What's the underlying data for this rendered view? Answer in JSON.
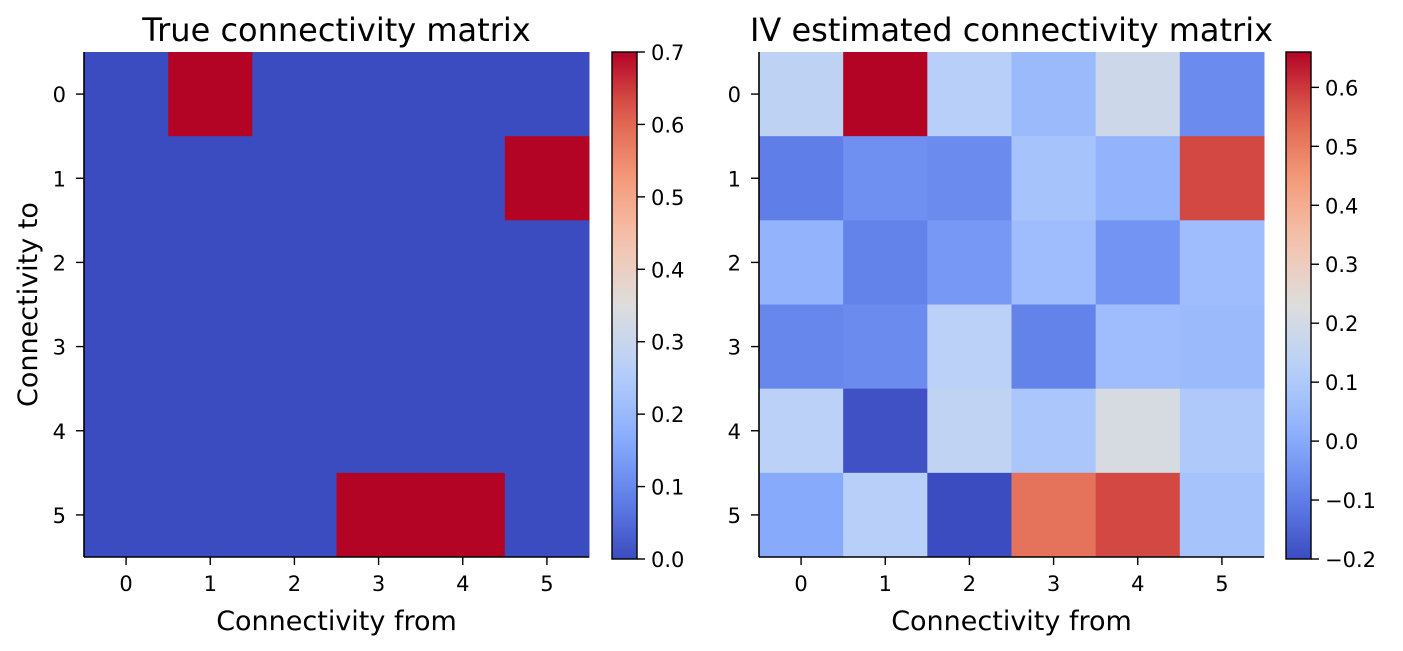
{
  "chart_data": [
    {
      "type": "heatmap",
      "title": "True connectivity matrix",
      "xlabel": "Connectivity from",
      "ylabel": "Connectivity to",
      "x_categories": [
        "0",
        "1",
        "2",
        "3",
        "4",
        "5"
      ],
      "y_categories": [
        "0",
        "1",
        "2",
        "3",
        "4",
        "5"
      ],
      "values": [
        [
          0.0,
          0.7,
          0.0,
          0.0,
          0.0,
          0.0
        ],
        [
          0.0,
          0.0,
          0.0,
          0.0,
          0.0,
          0.7
        ],
        [
          0.0,
          0.0,
          0.0,
          0.0,
          0.0,
          0.0
        ],
        [
          0.0,
          0.0,
          0.0,
          0.0,
          0.0,
          0.0
        ],
        [
          0.0,
          0.0,
          0.0,
          0.0,
          0.0,
          0.0
        ],
        [
          0.0,
          0.0,
          0.0,
          0.7,
          0.7,
          0.0
        ]
      ],
      "colormap": "coolwarm",
      "colorbar": {
        "vmin": 0.0,
        "vmax": 0.7,
        "ticks": [
          0.0,
          0.1,
          0.2,
          0.3,
          0.4,
          0.5,
          0.6,
          0.7
        ],
        "tick_labels": [
          "0.0",
          "0.1",
          "0.2",
          "0.3",
          "0.4",
          "0.5",
          "0.6",
          "0.7"
        ]
      }
    },
    {
      "type": "heatmap",
      "title": "IV estimated connectivity matrix",
      "xlabel": "Connectivity from",
      "ylabel": "",
      "x_categories": [
        "0",
        "1",
        "2",
        "3",
        "4",
        "5"
      ],
      "y_categories": [
        "0",
        "1",
        "2",
        "3",
        "4",
        "5"
      ],
      "values": [
        [
          0.14,
          0.66,
          0.12,
          0.05,
          0.18,
          -0.07
        ],
        [
          -0.1,
          -0.06,
          -0.07,
          0.08,
          0.03,
          0.58
        ],
        [
          0.03,
          -0.09,
          -0.04,
          0.06,
          -0.05,
          0.06
        ],
        [
          -0.08,
          -0.07,
          0.13,
          -0.09,
          0.06,
          0.05
        ],
        [
          0.13,
          -0.19,
          0.15,
          0.09,
          0.21,
          0.1
        ],
        [
          0.0,
          0.12,
          -0.2,
          0.52,
          0.58,
          0.08
        ]
      ],
      "colormap": "coolwarm",
      "colorbar": {
        "vmin": -0.2,
        "vmax": 0.66,
        "ticks": [
          -0.2,
          -0.1,
          0.0,
          0.1,
          0.2,
          0.3,
          0.4,
          0.5,
          0.6
        ],
        "tick_labels": [
          "−0.2",
          "−0.1",
          "0.0",
          "0.1",
          "0.2",
          "0.3",
          "0.4",
          "0.5",
          "0.6"
        ]
      }
    }
  ]
}
